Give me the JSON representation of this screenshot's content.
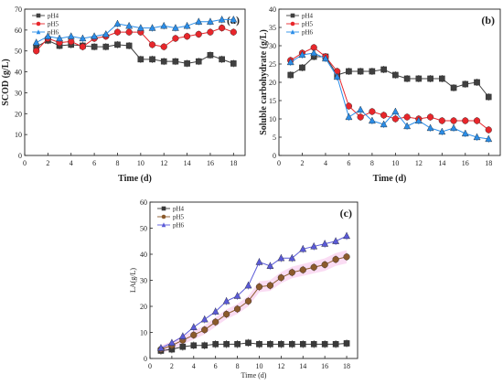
{
  "chart_data": [
    {
      "type": "line",
      "panel_label": "(a)",
      "xlabel": "Time (d)",
      "ylabel": "SCOD (g/L)",
      "xlim": [
        0,
        19
      ],
      "ylim": [
        0,
        70
      ],
      "xticks": [
        0,
        2,
        4,
        6,
        8,
        10,
        12,
        14,
        16,
        18
      ],
      "yticks": [
        0,
        10,
        20,
        30,
        40,
        50,
        60,
        70
      ],
      "legend_position": "top-left",
      "series": [
        {
          "name": "pH4",
          "marker": "square",
          "color": "#404040",
          "x": [
            1,
            2,
            3,
            4,
            5,
            6,
            7,
            8,
            9,
            10,
            11,
            12,
            13,
            14,
            15,
            16,
            17,
            18
          ],
          "y": [
            52,
            55,
            52.5,
            53,
            52.5,
            52,
            52,
            53,
            52.5,
            46,
            46,
            45,
            45,
            44,
            45,
            48,
            46,
            44
          ]
        },
        {
          "name": "pH5",
          "marker": "circle",
          "color": "#e8262b",
          "x": [
            1,
            2,
            3,
            4,
            5,
            6,
            7,
            8,
            9,
            10,
            11,
            12,
            13,
            14,
            15,
            16,
            17,
            18
          ],
          "y": [
            50,
            56,
            54,
            54.5,
            52,
            56,
            57,
            59,
            59,
            59,
            53,
            52,
            56,
            57,
            58,
            59,
            61,
            59
          ]
        },
        {
          "name": "pH6",
          "marker": "triangle",
          "color": "#2a8de8",
          "x": [
            1,
            2,
            3,
            4,
            5,
            6,
            7,
            8,
            9,
            10,
            11,
            12,
            13,
            14,
            15,
            16,
            17,
            18
          ],
          "y": [
            54,
            57,
            56,
            57,
            56,
            57,
            58,
            63,
            62,
            61,
            61,
            62,
            61,
            62,
            64,
            64,
            65,
            65
          ]
        }
      ]
    },
    {
      "type": "line",
      "panel_label": "(b)",
      "xlabel": "Time (d)",
      "ylabel": "Soluble carbohydrate (g/L)",
      "xlim": [
        0,
        19
      ],
      "ylim": [
        0,
        40
      ],
      "xticks": [
        0,
        2,
        4,
        6,
        8,
        10,
        12,
        14,
        16,
        18
      ],
      "yticks": [
        0,
        5,
        10,
        15,
        20,
        25,
        30,
        35,
        40
      ],
      "legend_position": "top-left",
      "series": [
        {
          "name": "pH4",
          "marker": "square",
          "color": "#404040",
          "x": [
            1,
            2,
            3,
            4,
            5,
            6,
            7,
            8,
            9,
            10,
            11,
            12,
            13,
            14,
            15,
            16,
            17,
            18
          ],
          "y": [
            22,
            24,
            27,
            27,
            22,
            23,
            23,
            23,
            23.5,
            22,
            21,
            21,
            21,
            21,
            18.5,
            19.5,
            20,
            16
          ]
        },
        {
          "name": "pH5",
          "marker": "circle",
          "color": "#e8262b",
          "x": [
            1,
            2,
            3,
            4,
            5,
            6,
            7,
            8,
            9,
            10,
            11,
            12,
            13,
            14,
            15,
            16,
            17,
            18
          ],
          "y": [
            26,
            28,
            29.5,
            27,
            23,
            13.5,
            10.5,
            12,
            11,
            10,
            10.5,
            10,
            10.5,
            9.5,
            9.5,
            9.5,
            9.5,
            7
          ]
        },
        {
          "name": "pH6",
          "marker": "triangle",
          "color": "#2a8de8",
          "x": [
            1,
            2,
            3,
            4,
            5,
            6,
            7,
            8,
            9,
            10,
            11,
            12,
            13,
            14,
            15,
            16,
            17,
            18
          ],
          "y": [
            25.5,
            27.5,
            28,
            26.5,
            21.5,
            10.5,
            12.5,
            9.5,
            8.5,
            12,
            8,
            9.5,
            7.5,
            6.5,
            7.5,
            6,
            5,
            4.5
          ]
        }
      ]
    },
    {
      "type": "line",
      "panel_label": "(c)",
      "xlabel": "Time (d)",
      "ylabel": "LA(g/L)",
      "xlim": [
        0,
        19
      ],
      "ylim": [
        0,
        60
      ],
      "xticks": [
        0,
        2,
        4,
        6,
        8,
        10,
        12,
        14,
        16,
        18
      ],
      "yticks": [
        0,
        10,
        20,
        30,
        40,
        50,
        60
      ],
      "legend_position": "top-left",
      "series": [
        {
          "name": "pH4",
          "marker": "square",
          "color": "#3a3a3a",
          "x": [
            1,
            2,
            3,
            4,
            5,
            6,
            7,
            8,
            9,
            10,
            11,
            12,
            13,
            14,
            15,
            16,
            17,
            18
          ],
          "y": [
            3,
            3.5,
            4.5,
            5,
            5,
            5.5,
            5.5,
            5.5,
            6,
            5.5,
            5.5,
            5.5,
            5.5,
            5.5,
            5.5,
            5.5,
            5.5,
            5.8
          ]
        },
        {
          "name": "pH5",
          "marker": "circle",
          "color": "#8b5a2b",
          "x": [
            1,
            2,
            3,
            4,
            5,
            6,
            7,
            8,
            9,
            10,
            11,
            12,
            13,
            14,
            15,
            16,
            17,
            18
          ],
          "y": [
            3.5,
            5,
            7,
            9,
            11,
            14,
            17,
            19,
            22,
            27.5,
            28,
            31,
            33,
            34,
            35,
            36,
            38,
            39
          ]
        },
        {
          "name": "pH6",
          "marker": "triangle",
          "color": "#5a5ad8",
          "x": [
            1,
            2,
            3,
            4,
            5,
            6,
            7,
            8,
            9,
            10,
            11,
            12,
            13,
            14,
            15,
            16,
            17,
            18
          ],
          "y": [
            4,
            6,
            8.5,
            12,
            15,
            18,
            22,
            24,
            28,
            37,
            35.5,
            38.5,
            38.5,
            42,
            43,
            44,
            45,
            47
          ]
        }
      ]
    }
  ],
  "colors": {
    "axis": "#222222",
    "pH4": "#404040",
    "pH5": "#e8262b",
    "pH6": "#2a8de8",
    "c_band": "#f8d0ef"
  }
}
